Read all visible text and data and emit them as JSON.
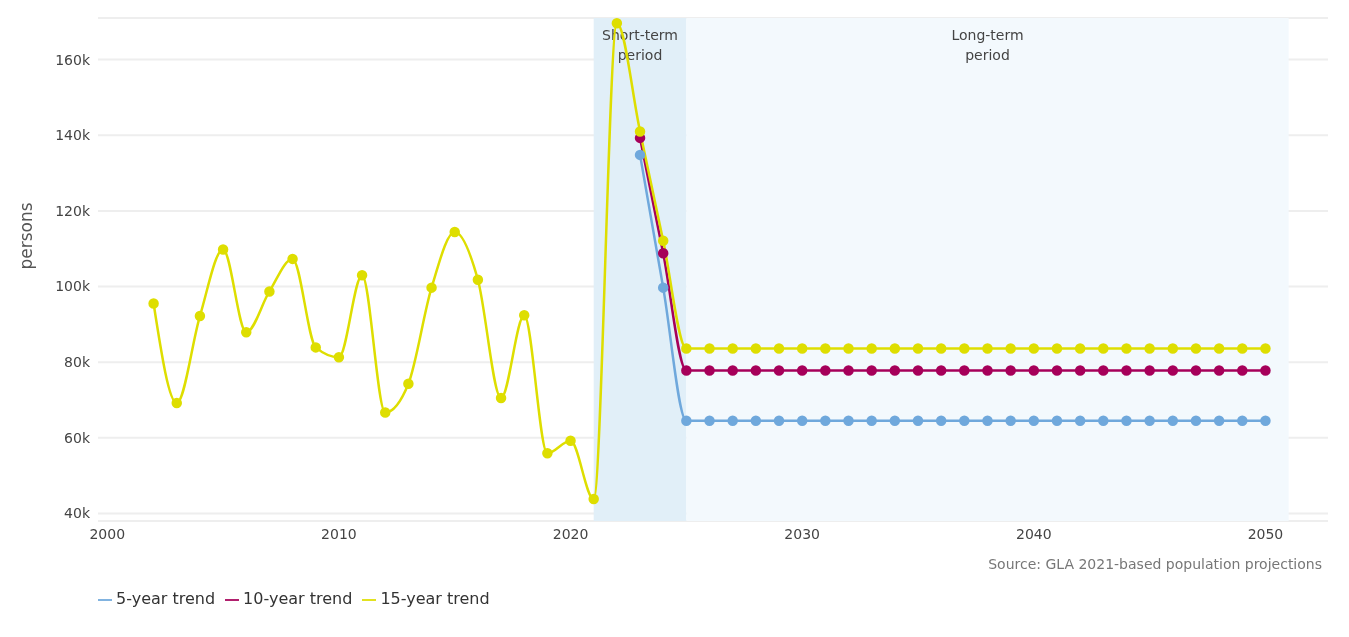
{
  "chart_data": {
    "type": "line",
    "ylabel": "persons",
    "x": [
      2002,
      2003,
      2004,
      2005,
      2006,
      2007,
      2008,
      2009,
      2010,
      2011,
      2012,
      2013,
      2014,
      2015,
      2016,
      2017,
      2018,
      2019,
      2020,
      2021,
      2022,
      2023,
      2024,
      2025,
      2026,
      2027,
      2028,
      2029,
      2030,
      2031,
      2032,
      2033,
      2034,
      2035,
      2036,
      2037,
      2038,
      2039,
      2040,
      2041,
      2042,
      2043,
      2044,
      2045,
      2046,
      2047,
      2048,
      2049,
      2050
    ],
    "series": [
      {
        "name": "5-year trend",
        "color": "#6fa8dc",
        "values": [
          null,
          null,
          null,
          null,
          null,
          null,
          null,
          null,
          null,
          null,
          null,
          null,
          null,
          null,
          null,
          null,
          null,
          null,
          null,
          null,
          null,
          134800,
          99700,
          64500,
          64500,
          64500,
          64500,
          64500,
          64500,
          64500,
          64500,
          64500,
          64500,
          64500,
          64500,
          64500,
          64500,
          64500,
          64500,
          64500,
          64500,
          64500,
          64500,
          64500,
          64500,
          64500,
          64500,
          64500,
          64500
        ]
      },
      {
        "name": "10-year trend",
        "color": "#a6005a",
        "values": [
          null,
          null,
          null,
          null,
          null,
          null,
          null,
          null,
          null,
          null,
          null,
          null,
          null,
          null,
          null,
          null,
          null,
          null,
          null,
          null,
          null,
          139300,
          108800,
          77800,
          77800,
          77800,
          77800,
          77800,
          77800,
          77800,
          77800,
          77800,
          77800,
          77800,
          77800,
          77800,
          77800,
          77800,
          77800,
          77800,
          77800,
          77800,
          77800,
          77800,
          77800,
          77800,
          77800,
          77800,
          77800
        ]
      },
      {
        "name": "15-year trend",
        "color": "#dede00",
        "values": [
          95500,
          69200,
          92200,
          109800,
          87900,
          98700,
          107300,
          83900,
          81300,
          103000,
          66700,
          74300,
          99700,
          114400,
          101800,
          70500,
          92400,
          55900,
          59200,
          43800,
          169600,
          141000,
          112100,
          83600,
          83600,
          83600,
          83600,
          83600,
          83600,
          83600,
          83600,
          83600,
          83600,
          83600,
          83600,
          83600,
          83600,
          83600,
          83600,
          83600,
          83600,
          83600,
          83600,
          83600,
          83600,
          83600,
          83600,
          83600,
          83600
        ]
      }
    ],
    "xlim": [
      1999.6,
      2052.7
    ],
    "xticks": [
      2000,
      2010,
      2020,
      2030,
      2040,
      2050
    ],
    "ylim": [
      38000,
      171000
    ],
    "yticks": [
      {
        "value": 40000,
        "label": "40k"
      },
      {
        "value": 60000,
        "label": "60k"
      },
      {
        "value": 80000,
        "label": "80k"
      },
      {
        "value": 100000,
        "label": "100k"
      },
      {
        "value": 120000,
        "label": "120k"
      },
      {
        "value": 140000,
        "label": "140k"
      },
      {
        "value": 160000,
        "label": "160k"
      }
    ],
    "bands": [
      {
        "axis": "x",
        "from": 2021,
        "to": 2025,
        "label": "Short-term period",
        "color": "#e1eff8"
      },
      {
        "axis": "x",
        "from": 2025,
        "to": 2051,
        "label": "Long-term period",
        "color": "#f3f9fd"
      }
    ],
    "annotations": [
      "Source: GLA 2021-based population projections"
    ],
    "grid": "y",
    "legend": "bottom left",
    "marker": "circle",
    "line_style": "solid"
  }
}
